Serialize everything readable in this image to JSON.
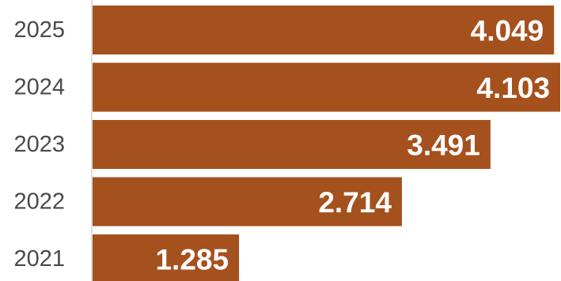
{
  "chart_data": {
    "type": "bar",
    "orientation": "horizontal",
    "categories": [
      "2025",
      "2024",
      "2023",
      "2022",
      "2021"
    ],
    "values": [
      4.049,
      4.103,
      3.491,
      2.714,
      1.285
    ],
    "value_labels": [
      "4.049",
      "4.103",
      "3.491",
      "2.714",
      "1.285"
    ],
    "title": "",
    "xlabel": "",
    "ylabel": "",
    "xlim": [
      0,
      4.103
    ],
    "grid": false,
    "legend": "none",
    "colors": {
      "bar": "#a5511e",
      "value_text": "#ffffff",
      "category_text": "#4a4a4a"
    }
  }
}
